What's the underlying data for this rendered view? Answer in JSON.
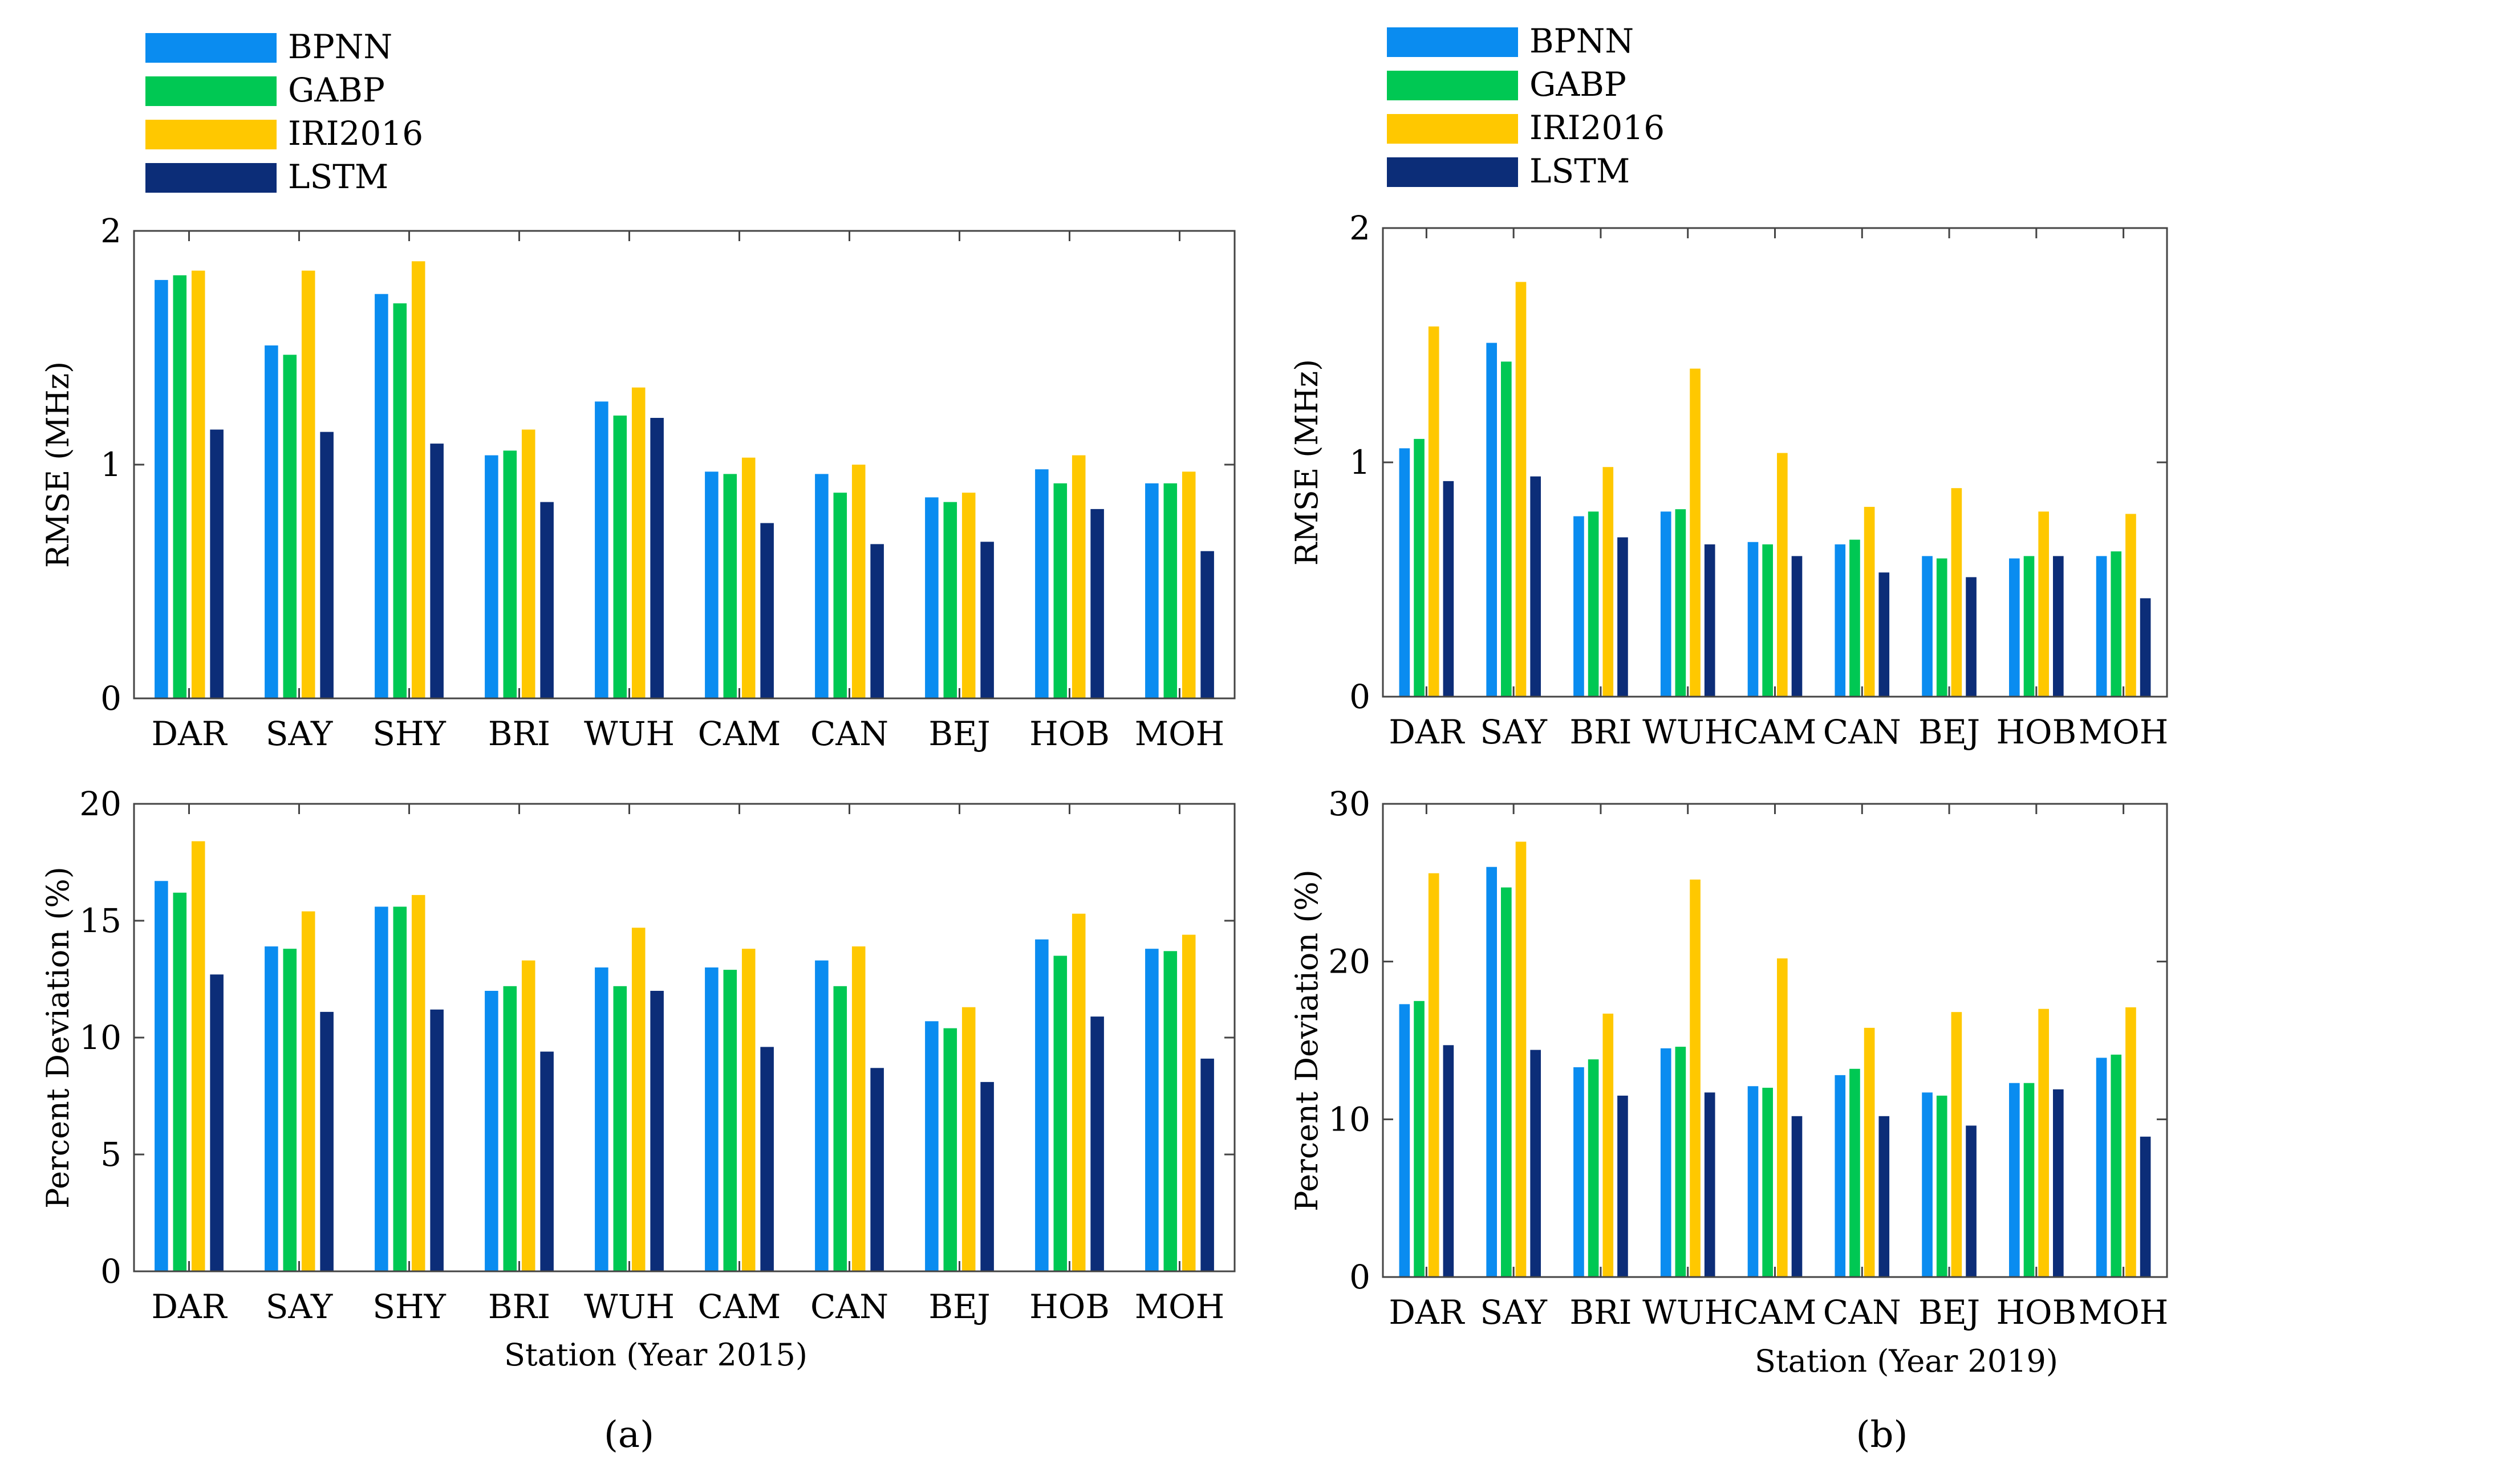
{
  "colors": {
    "BPNN": "#0A8CF0",
    "GABP": "#00C853",
    "IRI2016": "#FFC800",
    "LSTM": "#0C2D78"
  },
  "chart_data": [
    {
      "panel": "a",
      "panel_label": "(a)",
      "xlabel": "Station (Year 2015)",
      "legend": [
        "BPNN",
        "GABP",
        "IRI2016",
        "LSTM"
      ],
      "charts": [
        {
          "type": "bar",
          "ylabel": "RMSE (MHz)",
          "ylim": [
            0,
            2
          ],
          "yticks": [
            "0",
            "1",
            "2"
          ],
          "categories": [
            "DAR",
            "SAY",
            "SHY",
            "BRI",
            "WUH",
            "CAM",
            "CAN",
            "BEJ",
            "HOB",
            "MOH"
          ],
          "series": [
            {
              "name": "BPNN",
              "values": [
                1.79,
                1.51,
                1.73,
                1.04,
                1.27,
                0.97,
                0.96,
                0.86,
                0.98,
                0.92
              ]
            },
            {
              "name": "GABP",
              "values": [
                1.81,
                1.47,
                1.69,
                1.06,
                1.21,
                0.96,
                0.88,
                0.84,
                0.92,
                0.92
              ]
            },
            {
              "name": "IRI2016",
              "values": [
                1.83,
                1.83,
                1.87,
                1.15,
                1.33,
                1.03,
                1.0,
                0.88,
                1.04,
                0.97
              ]
            },
            {
              "name": "LSTM",
              "values": [
                1.15,
                1.14,
                1.09,
                0.84,
                1.2,
                0.75,
                0.66,
                0.67,
                0.81,
                0.63
              ]
            }
          ]
        },
        {
          "type": "bar",
          "ylabel": "Percent Deviation (%)",
          "ylim": [
            0,
            20
          ],
          "yticks": [
            "0",
            "5",
            "10",
            "15",
            "20"
          ],
          "categories": [
            "DAR",
            "SAY",
            "SHY",
            "BRI",
            "WUH",
            "CAM",
            "CAN",
            "BEJ",
            "HOB",
            "MOH"
          ],
          "series": [
            {
              "name": "BPNN",
              "values": [
                16.7,
                13.9,
                15.6,
                12.0,
                13.0,
                13.0,
                13.3,
                10.7,
                14.2,
                13.8
              ]
            },
            {
              "name": "GABP",
              "values": [
                16.2,
                13.8,
                15.6,
                12.2,
                12.2,
                12.9,
                12.2,
                10.4,
                13.5,
                13.7
              ]
            },
            {
              "name": "IRI2016",
              "values": [
                18.4,
                15.4,
                16.1,
                13.3,
                14.7,
                13.8,
                13.9,
                11.3,
                15.3,
                14.4
              ]
            },
            {
              "name": "LSTM",
              "values": [
                12.7,
                11.1,
                11.2,
                9.4,
                12.0,
                9.6,
                8.7,
                8.1,
                10.9,
                9.1
              ]
            }
          ]
        }
      ]
    },
    {
      "panel": "b",
      "panel_label": "(b)",
      "xlabel": "Station (Year 2019)",
      "legend": [
        "BPNN",
        "GABP",
        "IRI2016",
        "LSTM"
      ],
      "charts": [
        {
          "type": "bar",
          "ylabel": "RMSE (MHz)",
          "ylim": [
            0,
            2
          ],
          "yticks": [
            "0",
            "1",
            "2"
          ],
          "categories": [
            "DAR",
            "SAY",
            "BRI",
            "WUH",
            "CAM",
            "CAN",
            "BEJ",
            "HOB",
            "MOH"
          ],
          "series": [
            {
              "name": "BPNN",
              "values": [
                1.06,
                1.51,
                0.77,
                0.79,
                0.66,
                0.65,
                0.6,
                0.59,
                0.6
              ]
            },
            {
              "name": "GABP",
              "values": [
                1.1,
                1.43,
                0.79,
                0.8,
                0.65,
                0.67,
                0.59,
                0.6,
                0.62
              ]
            },
            {
              "name": "IRI2016",
              "values": [
                1.58,
                1.77,
                0.98,
                1.4,
                1.04,
                0.81,
                0.89,
                0.79,
                0.78
              ]
            },
            {
              "name": "LSTM",
              "values": [
                0.92,
                0.94,
                0.68,
                0.65,
                0.6,
                0.53,
                0.51,
                0.6,
                0.42
              ]
            }
          ]
        },
        {
          "type": "bar",
          "ylabel": "Percent Deviation (%)",
          "ylim": [
            0,
            30
          ],
          "yticks": [
            "0",
            "10",
            "20",
            "30"
          ],
          "categories": [
            "DAR",
            "SAY",
            "BRI",
            "WUH",
            "CAM",
            "CAN",
            "BEJ",
            "HOB",
            "MOH"
          ],
          "series": [
            {
              "name": "BPNN",
              "values": [
                17.3,
                26.0,
                13.3,
                14.5,
                12.1,
                12.8,
                11.7,
                12.3,
                13.9
              ]
            },
            {
              "name": "GABP",
              "values": [
                17.5,
                24.7,
                13.8,
                14.6,
                12.0,
                13.2,
                11.5,
                12.3,
                14.1
              ]
            },
            {
              "name": "IRI2016",
              "values": [
                25.6,
                27.6,
                16.7,
                25.2,
                20.2,
                15.8,
                16.8,
                17.0,
                17.1
              ]
            },
            {
              "name": "LSTM",
              "values": [
                14.7,
                14.4,
                11.5,
                11.7,
                10.2,
                10.2,
                9.6,
                11.9,
                8.9
              ]
            }
          ]
        }
      ]
    }
  ]
}
